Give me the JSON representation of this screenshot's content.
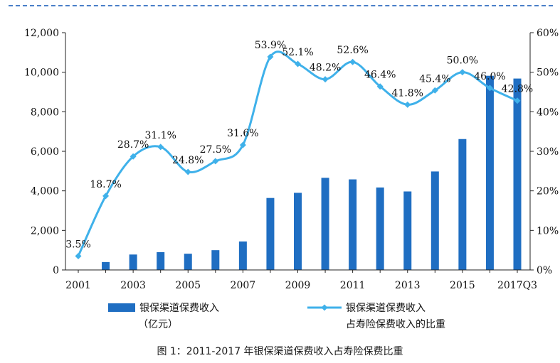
{
  "caption": "图 1：2011-2017 年银保渠道保费收入占寿险保费比重",
  "colors": {
    "bar": "#1f6ec2",
    "line": "#3fb1ea",
    "axis": "#222222",
    "text": "#111111"
  },
  "chart_data": {
    "type": "bar",
    "x": [
      "2001",
      "2002",
      "2003",
      "2004",
      "2005",
      "2006",
      "2007",
      "2008",
      "2009",
      "2010",
      "2011",
      "2012",
      "2013",
      "2014",
      "2015",
      "2016",
      "2017Q3"
    ],
    "x_tick_labels": [
      "2001",
      "2003",
      "2005",
      "2007",
      "2009",
      "2011",
      "2013",
      "2015",
      "2017Q3"
    ],
    "y_left": {
      "lim": [
        0,
        12000
      ],
      "ticks": [
        "0",
        "2,000",
        "4,000",
        "6,000",
        "8,000",
        "10,000",
        "12,000"
      ]
    },
    "y_right": {
      "lim": [
        0,
        60
      ],
      "ticks": [
        "0%",
        "10%",
        "20%",
        "30%",
        "40%",
        "50%",
        "60%"
      ]
    },
    "series": [
      {
        "name": "银保渠道保费收入",
        "name_line2": "（亿元）",
        "type": "bar",
        "axis": "left",
        "values": [
          null,
          400,
          780,
          900,
          820,
          1000,
          1440,
          3640,
          3900,
          4660,
          4580,
          4170,
          3970,
          4980,
          6620,
          9820,
          9680
        ]
      },
      {
        "name": "银保渠道保费收入",
        "name_line2": "占寿险保费收入的比重",
        "type": "line",
        "axis": "right",
        "values": [
          3.5,
          18.7,
          28.7,
          31.1,
          24.8,
          27.5,
          31.6,
          53.9,
          52.1,
          48.2,
          52.6,
          46.4,
          41.8,
          45.4,
          50.0,
          46.0,
          42.8
        ],
        "labels": [
          "3.5%",
          "18.7%",
          "28.7%",
          "31.1%",
          "24.8%",
          "27.5%",
          "31.6%",
          "53.9%",
          "52.1%",
          "48.2%",
          "52.6%",
          "46.4%",
          "41.8%",
          "45.4%",
          "50.0%",
          "46.0%",
          "42.8%"
        ]
      }
    ],
    "legend_position": "bottom",
    "grid": false
  }
}
